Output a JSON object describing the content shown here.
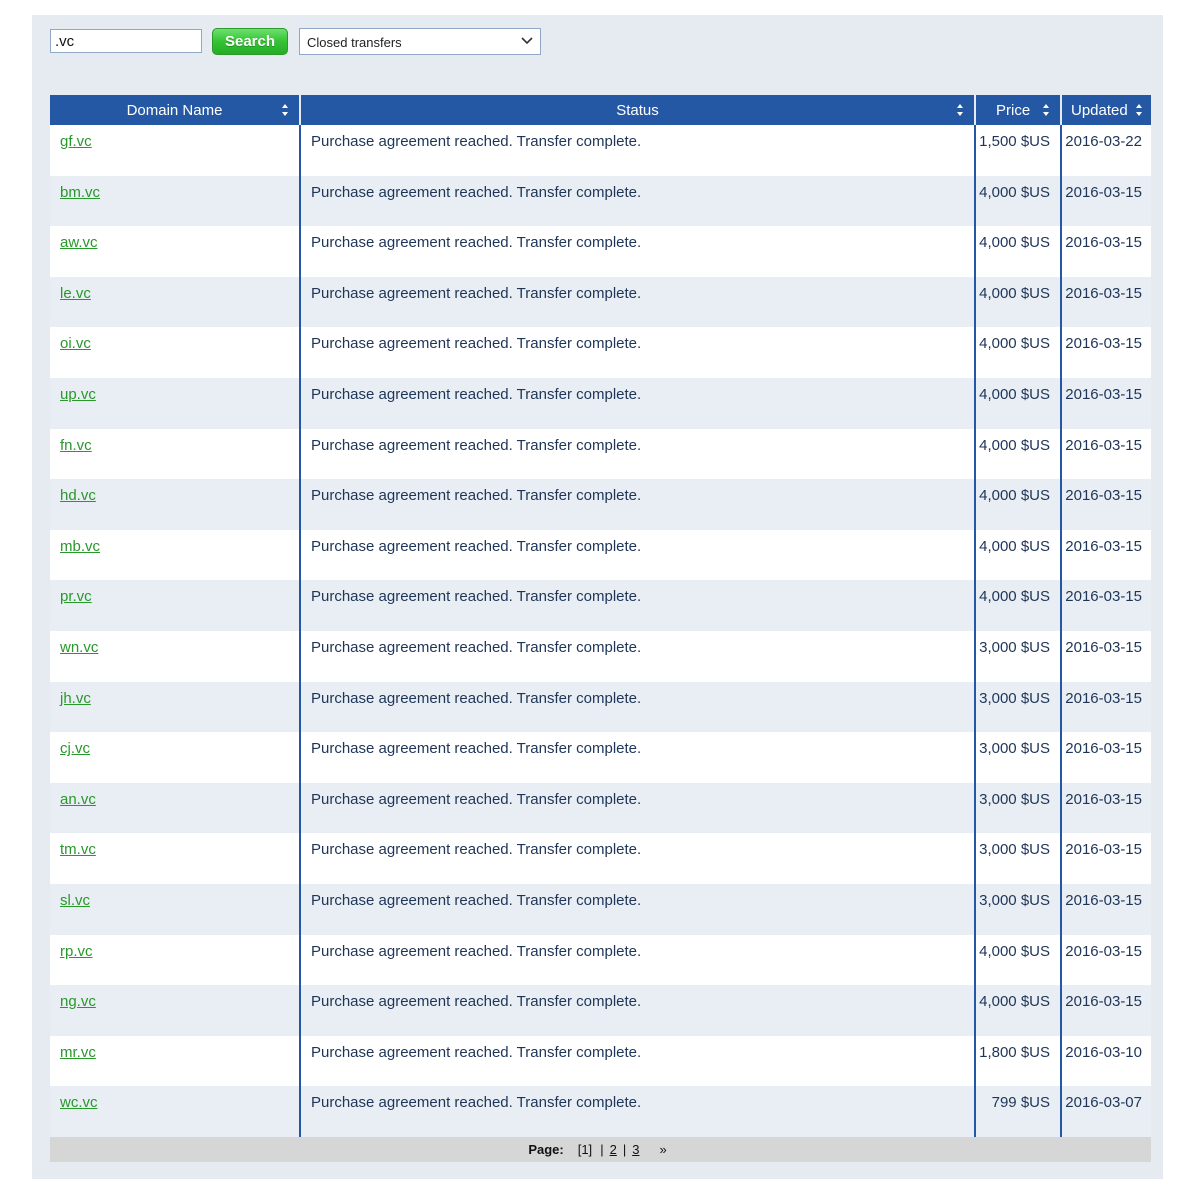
{
  "search": {
    "value": ".vc",
    "button_label": "Search"
  },
  "filter": {
    "selected": "Closed transfers"
  },
  "table": {
    "headers": {
      "domain": "Domain Name",
      "status": "Status",
      "price": "Price",
      "updated": "Updated"
    },
    "rows": [
      {
        "domain": "gf.vc",
        "status": "Purchase agreement reached. Transfer complete.",
        "price": "1,500 $US",
        "updated": "2016-03-22"
      },
      {
        "domain": "bm.vc",
        "status": "Purchase agreement reached. Transfer complete.",
        "price": "4,000 $US",
        "updated": "2016-03-15"
      },
      {
        "domain": "aw.vc",
        "status": "Purchase agreement reached. Transfer complete.",
        "price": "4,000 $US",
        "updated": "2016-03-15"
      },
      {
        "domain": "le.vc",
        "status": "Purchase agreement reached. Transfer complete.",
        "price": "4,000 $US",
        "updated": "2016-03-15"
      },
      {
        "domain": "oi.vc",
        "status": "Purchase agreement reached. Transfer complete.",
        "price": "4,000 $US",
        "updated": "2016-03-15"
      },
      {
        "domain": "up.vc",
        "status": "Purchase agreement reached. Transfer complete.",
        "price": "4,000 $US",
        "updated": "2016-03-15"
      },
      {
        "domain": "fn.vc",
        "status": "Purchase agreement reached. Transfer complete.",
        "price": "4,000 $US",
        "updated": "2016-03-15"
      },
      {
        "domain": "hd.vc",
        "status": "Purchase agreement reached. Transfer complete.",
        "price": "4,000 $US",
        "updated": "2016-03-15"
      },
      {
        "domain": "mb.vc",
        "status": "Purchase agreement reached. Transfer complete.",
        "price": "4,000 $US",
        "updated": "2016-03-15"
      },
      {
        "domain": "pr.vc",
        "status": "Purchase agreement reached. Transfer complete.",
        "price": "4,000 $US",
        "updated": "2016-03-15"
      },
      {
        "domain": "wn.vc",
        "status": "Purchase agreement reached. Transfer complete.",
        "price": "3,000 $US",
        "updated": "2016-03-15"
      },
      {
        "domain": "jh.vc",
        "status": "Purchase agreement reached. Transfer complete.",
        "price": "3,000 $US",
        "updated": "2016-03-15"
      },
      {
        "domain": "cj.vc",
        "status": "Purchase agreement reached. Transfer complete.",
        "price": "3,000 $US",
        "updated": "2016-03-15"
      },
      {
        "domain": "an.vc",
        "status": "Purchase agreement reached. Transfer complete.",
        "price": "3,000 $US",
        "updated": "2016-03-15"
      },
      {
        "domain": "tm.vc",
        "status": "Purchase agreement reached. Transfer complete.",
        "price": "3,000 $US",
        "updated": "2016-03-15"
      },
      {
        "domain": "sl.vc",
        "status": "Purchase agreement reached. Transfer complete.",
        "price": "3,000 $US",
        "updated": "2016-03-15"
      },
      {
        "domain": "rp.vc",
        "status": "Purchase agreement reached. Transfer complete.",
        "price": "4,000 $US",
        "updated": "2016-03-15"
      },
      {
        "domain": "ng.vc",
        "status": "Purchase agreement reached. Transfer complete.",
        "price": "4,000 $US",
        "updated": "2016-03-15"
      },
      {
        "domain": "mr.vc",
        "status": "Purchase agreement reached. Transfer complete.",
        "price": "1,800 $US",
        "updated": "2016-03-10"
      },
      {
        "domain": "wc.vc",
        "status": "Purchase agreement reached. Transfer complete.",
        "price": "799 $US",
        "updated": "2016-03-07"
      }
    ]
  },
  "pagination": {
    "label": "Page:",
    "current": "[1]",
    "pages": [
      "2",
      "3"
    ],
    "next": "»"
  },
  "colors": {
    "header": "#2558a4",
    "link": "#28982b",
    "search_button": "#34c334",
    "panel_bg": "#e5ebf1"
  }
}
